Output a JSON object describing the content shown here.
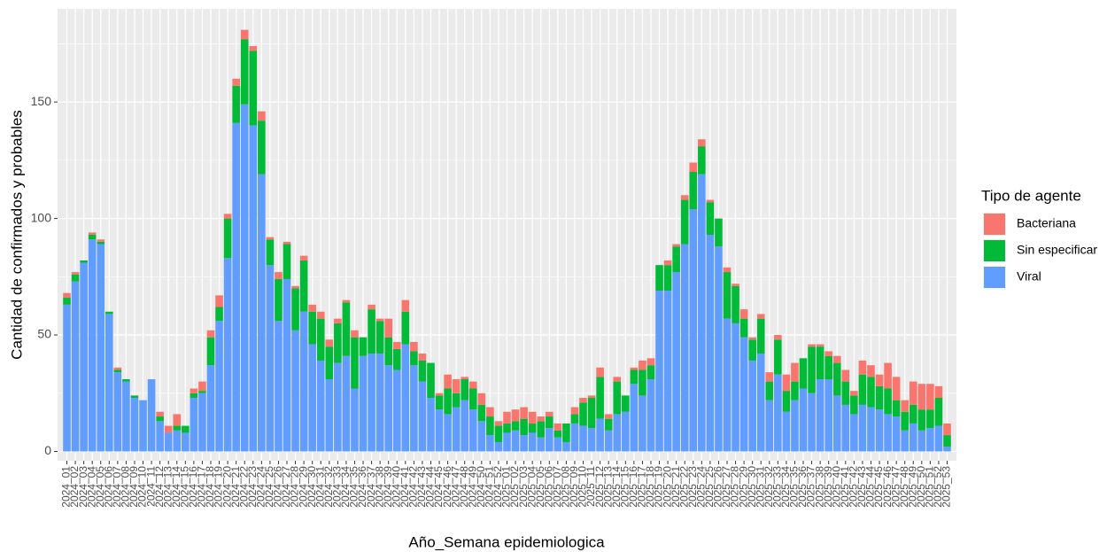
{
  "chart_data": {
    "type": "stacked_bar",
    "y_label": "Cantidad de confirmados y probables",
    "x_label": "Año_Semana epidemiologica",
    "legend_title": "Tipo de agente",
    "legend_position": "right",
    "grid": true,
    "ylim": [
      -4,
      190
    ],
    "yticks": [
      0,
      50,
      100,
      150
    ],
    "categories": [
      "2024_01",
      "2024_02",
      "2024_03",
      "2024_04",
      "2024_05",
      "2024_06",
      "2024_07",
      "2024_08",
      "2024_09",
      "2024_10",
      "2024_11",
      "2024_12",
      "2024_13",
      "2024_14",
      "2024_15",
      "2024_16",
      "2024_17",
      "2024_18",
      "2024_19",
      "2024_20",
      "2024_21",
      "2024_22",
      "2024_23",
      "2024_24",
      "2024_25",
      "2024_26",
      "2024_27",
      "2024_28",
      "2024_29",
      "2024_30",
      "2024_31",
      "2024_32",
      "2024_33",
      "2024_34",
      "2024_35",
      "2024_36",
      "2024_37",
      "2024_38",
      "2024_39",
      "2024_40",
      "2024_41",
      "2024_42",
      "2024_43",
      "2024_44",
      "2024_45",
      "2024_46",
      "2024_47",
      "2024_48",
      "2024_49",
      "2024_50",
      "2024_51",
      "2024_52",
      "2025_01",
      "2025_02",
      "2025_03",
      "2025_04",
      "2025_05",
      "2025_06",
      "2025_07",
      "2025_08",
      "2025_09",
      "2025_10",
      "2025_11",
      "2025_12",
      "2025_13",
      "2025_14",
      "2025_15",
      "2025_16",
      "2025_17",
      "2025_18",
      "2025_19",
      "2025_20",
      "2025_21",
      "2025_22",
      "2025_23",
      "2025_24",
      "2025_25",
      "2025_26",
      "2025_27",
      "2025_28",
      "2025_29",
      "2025_30",
      "2025_31",
      "2025_32",
      "2025_33",
      "2025_34",
      "2025_35",
      "2025_36",
      "2025_37",
      "2025_38",
      "2025_39",
      "2025_40",
      "2025_41",
      "2025_42",
      "2025_43",
      "2025_44",
      "2025_45",
      "2025_46",
      "2025_47",
      "2025_48",
      "2025_49",
      "2025_50",
      "2025_51",
      "2025_52",
      "2025_53"
    ],
    "series": [
      {
        "name": "Bacteriana",
        "color": "#F8766D",
        "values": [
          2,
          1,
          0,
          1,
          1,
          0,
          1,
          0,
          0,
          0,
          0,
          2,
          3,
          5,
          0,
          2,
          4,
          3,
          5,
          2,
          3,
          4,
          2,
          4,
          1,
          3,
          1,
          1,
          2,
          3,
          3,
          3,
          2,
          1,
          3,
          0,
          2,
          1,
          8,
          3,
          5,
          4,
          3,
          0,
          1,
          6,
          6,
          1,
          3,
          5,
          4,
          2,
          5,
          5,
          5,
          5,
          2,
          2,
          3,
          0,
          3,
          2,
          1,
          4,
          2,
          2,
          0,
          1,
          4,
          3,
          0,
          2,
          1,
          2,
          4,
          3,
          1,
          0,
          2,
          1,
          4,
          1,
          2,
          4,
          2,
          7,
          8,
          0,
          1,
          1,
          2,
          3,
          5,
          2,
          6,
          5,
          5,
          11,
          10,
          5,
          10,
          11,
          11,
          5,
          5
        ]
      },
      {
        "name": "Sin especificar",
        "color": "#00BA38",
        "values": [
          3,
          3,
          1,
          2,
          1,
          1,
          1,
          1,
          1,
          0,
          0,
          2,
          0,
          2,
          3,
          2,
          1,
          12,
          6,
          17,
          16,
          28,
          32,
          23,
          11,
          18,
          15,
          18,
          22,
          14,
          18,
          14,
          17,
          23,
          22,
          8,
          19,
          14,
          12,
          9,
          14,
          6,
          9,
          15,
          6,
          11,
          6,
          9,
          9,
          7,
          8,
          7,
          4,
          4,
          7,
          4,
          7,
          5,
          3,
          8,
          4,
          10,
          13,
          18,
          5,
          14,
          7,
          6,
          11,
          6,
          11,
          11,
          11,
          19,
          16,
          12,
          14,
          12,
          20,
          16,
          8,
          9,
          15,
          8,
          15,
          9,
          8,
          13,
          20,
          14,
          10,
          14,
          10,
          8,
          13,
          13,
          10,
          11,
          7,
          8,
          8,
          9,
          8,
          12,
          5
        ]
      },
      {
        "name": "Viral",
        "color": "#619CFF",
        "values": [
          63,
          73,
          81,
          91,
          89,
          59,
          34,
          30,
          23,
          22,
          31,
          13,
          8,
          9,
          8,
          23,
          25,
          37,
          56,
          83,
          141,
          149,
          140,
          119,
          80,
          56,
          74,
          52,
          60,
          46,
          39,
          31,
          38,
          41,
          27,
          41,
          42,
          42,
          37,
          35,
          46,
          37,
          30,
          23,
          18,
          16,
          19,
          22,
          18,
          13,
          7,
          4,
          8,
          9,
          7,
          8,
          6,
          10,
          6,
          4,
          12,
          11,
          10,
          14,
          9,
          16,
          17,
          29,
          24,
          31,
          69,
          69,
          77,
          89,
          104,
          119,
          93,
          88,
          57,
          55,
          49,
          39,
          42,
          22,
          33,
          17,
          22,
          27,
          25,
          31,
          31,
          24,
          20,
          16,
          20,
          19,
          18,
          16,
          15,
          9,
          12,
          9,
          10,
          11,
          2
        ]
      }
    ]
  }
}
